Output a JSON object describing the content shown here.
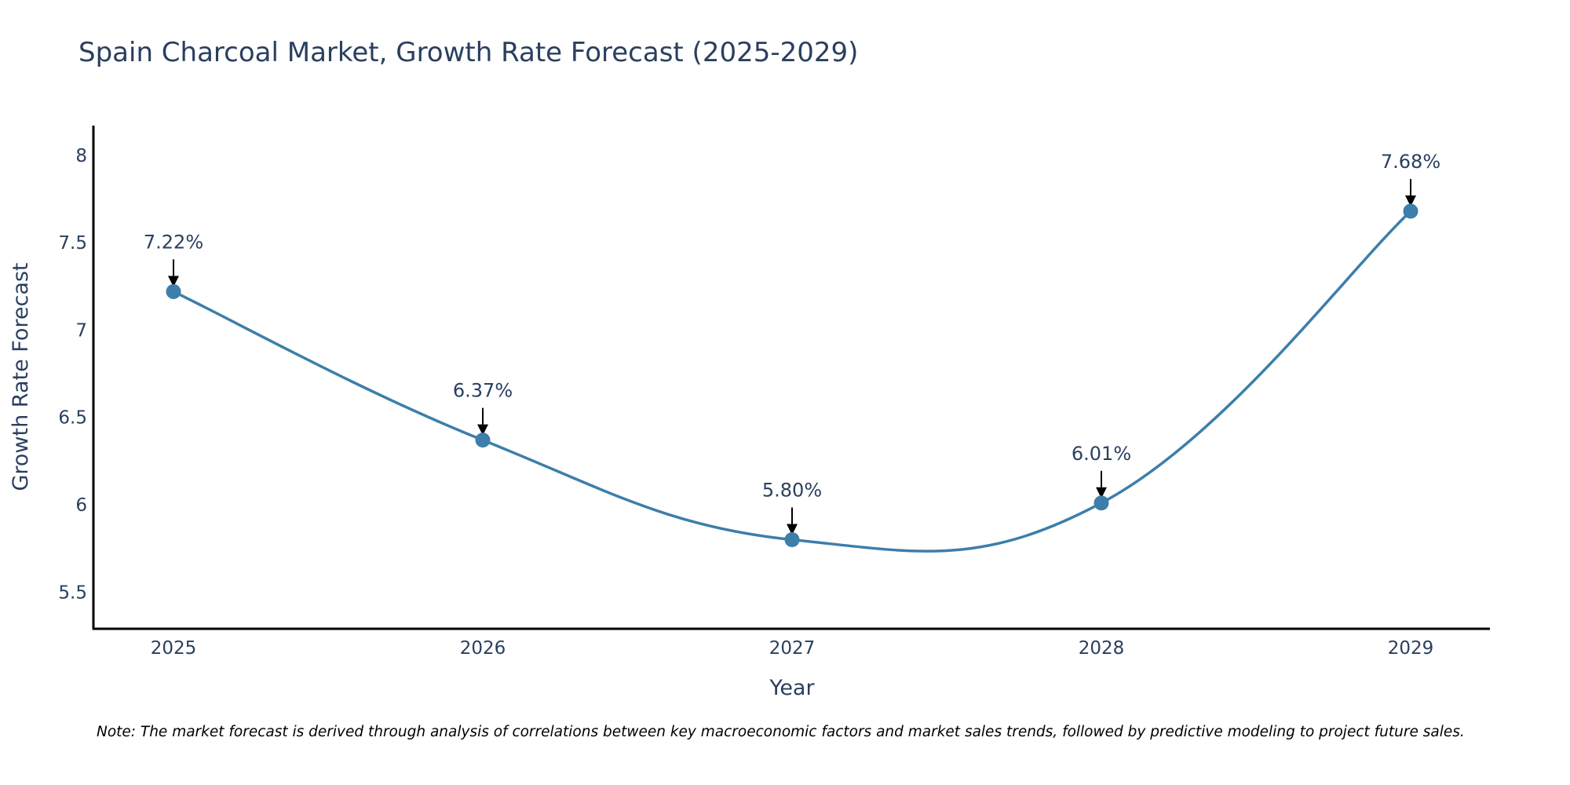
{
  "chart_data": {
    "type": "line",
    "title": "Spain Charcoal Market, Growth Rate Forecast (2025-2029)",
    "xlabel": "Year",
    "ylabel": "Growth Rate Forecast",
    "categories": [
      "2025",
      "2026",
      "2027",
      "2028",
      "2029"
    ],
    "values": [
      7.22,
      6.37,
      5.8,
      6.01,
      7.68
    ],
    "data_labels": [
      "7.22%",
      "6.37%",
      "5.80%",
      "6.01%",
      "7.68%"
    ],
    "y_ticks": [
      5.5,
      6,
      6.5,
      7,
      7.5,
      8
    ],
    "y_tick_labels": [
      "5.5",
      "6",
      "6.5",
      "7",
      "7.5",
      "8"
    ],
    "ylim": [
      5.29,
      8.17
    ],
    "line_color": "#3d7eaa",
    "marker_color": "#3d7eaa",
    "note": "Note: The market forecast is derived through analysis of correlations between key macroeconomic factors and market sales trends, followed by predictive modeling to project future sales."
  }
}
